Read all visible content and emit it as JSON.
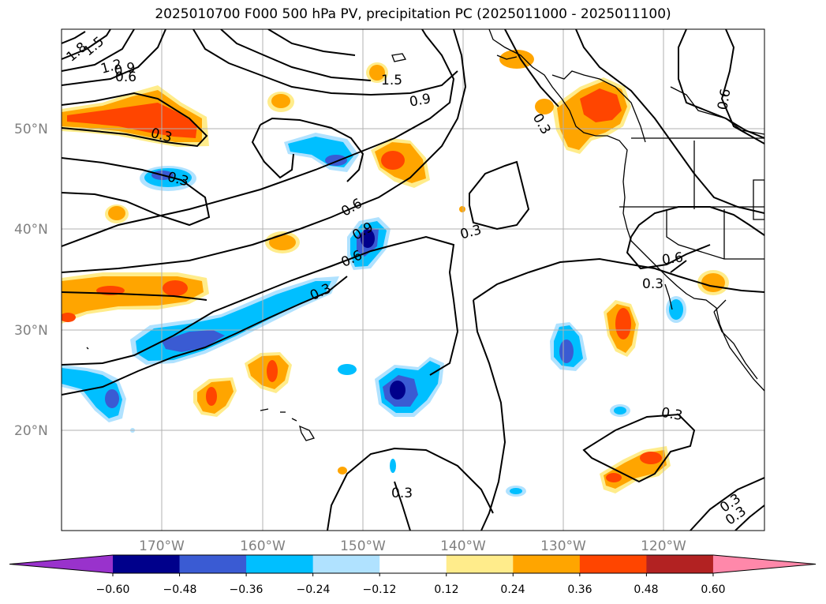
{
  "title": "2025010700 F000 500 hPa PV, precipitation PC (2025011000 - 2025011100)",
  "lat_labels": [
    "50°N",
    "40°N",
    "30°N",
    "20°N"
  ],
  "lon_labels": [
    "170°W",
    "160°W",
    "150°W",
    "140°W",
    "130°W",
    "120°W"
  ],
  "colorbar": {
    "ticks": [
      "−0.60",
      "−0.48",
      "−0.36",
      "−0.24",
      "−0.12",
      "0.12",
      "0.24",
      "0.36",
      "0.48",
      "0.60"
    ],
    "colors": [
      "#9932cc",
      "#00008b",
      "#3a5bd3",
      "#00bfff",
      "#b0e2ff",
      "#ffffff",
      "#ffec8b",
      "#ffa500",
      "#ff4500",
      "#b22222",
      "#ff88aa"
    ]
  },
  "contour_labels": [
    "1.8",
    "1.5",
    "1.2",
    "0.9",
    "0.6",
    "0.3",
    "0.3",
    "1.5",
    "0.9",
    "0.3",
    "0.6",
    "0.6",
    "0.3",
    "0.9",
    "0.6",
    "0.3",
    "0.3",
    "0.6",
    "0.3",
    "0.3",
    "0.3",
    "0.3"
  ],
  "colors": {
    "grid": "#b0b0b0",
    "contour": "#000000",
    "axis_text": "#808080"
  }
}
